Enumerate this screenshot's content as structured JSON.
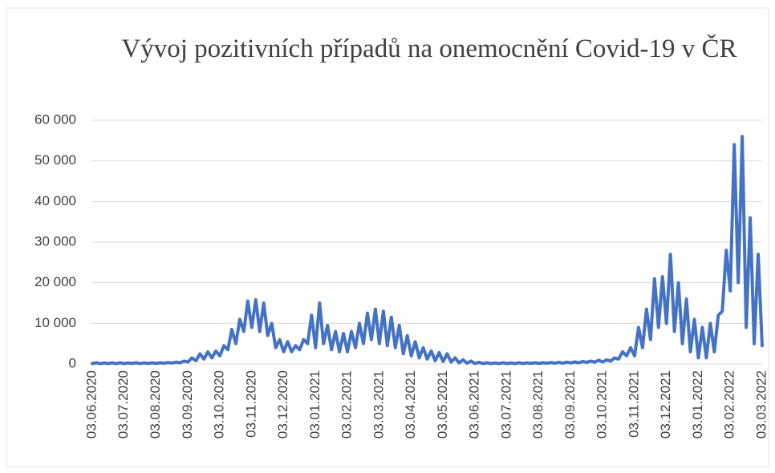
{
  "chart_data": {
    "type": "line",
    "title": "Vývoj pozitivních případů na onemocnění Covid-19 v ČR",
    "categories": [
      "03.06.2020",
      null,
      null,
      null,
      null,
      null,
      null,
      null,
      "03.07.2020",
      null,
      null,
      null,
      null,
      null,
      null,
      null,
      "03.08.2020",
      null,
      null,
      null,
      null,
      null,
      null,
      null,
      "03.09.2020",
      null,
      null,
      null,
      null,
      null,
      null,
      null,
      "03.10.2020",
      null,
      null,
      null,
      null,
      null,
      null,
      null,
      "03.11.2020",
      null,
      null,
      null,
      null,
      null,
      null,
      null,
      "03.12.2020",
      null,
      null,
      null,
      null,
      null,
      null,
      null,
      "03.01.2021",
      null,
      null,
      null,
      null,
      null,
      null,
      null,
      "03.02.2021",
      null,
      null,
      null,
      null,
      null,
      null,
      null,
      "03.03.2021",
      null,
      null,
      null,
      null,
      null,
      null,
      null,
      "03.04.2021",
      null,
      null,
      null,
      null,
      null,
      null,
      null,
      "03.05.2021",
      null,
      null,
      null,
      null,
      null,
      null,
      null,
      "03.06.2021",
      null,
      null,
      null,
      null,
      null,
      null,
      null,
      "03.07.2021",
      null,
      null,
      null,
      null,
      null,
      null,
      null,
      "03.08.2021",
      null,
      null,
      null,
      null,
      null,
      null,
      null,
      "03.09.2021",
      null,
      null,
      null,
      null,
      null,
      null,
      null,
      "03.10.2021",
      null,
      null,
      null,
      null,
      null,
      null,
      null,
      "03.11.2021",
      null,
      null,
      null,
      null,
      null,
      null,
      null,
      "03.12.2021",
      null,
      null,
      null,
      null,
      null,
      null,
      null,
      "03.01.2022",
      null,
      null,
      null,
      null,
      null,
      null,
      null,
      "03.02.2022",
      null,
      null,
      null,
      null,
      null,
      null,
      null,
      "03.03.2022"
    ],
    "values": [
      100,
      300,
      80,
      250,
      100,
      280,
      90,
      300,
      100,
      250,
      120,
      300,
      110,
      260,
      130,
      280,
      150,
      300,
      200,
      350,
      250,
      450,
      300,
      700,
      500,
      1500,
      800,
      2500,
      1200,
      3000,
      1500,
      3200,
      2000,
      4500,
      3500,
      8500,
      5000,
      11000,
      8000,
      15500,
      9000,
      15800,
      8000,
      15000,
      7000,
      10000,
      4000,
      6000,
      3000,
      5500,
      3000,
      4500,
      3500,
      6000,
      5000,
      12000,
      4000,
      15000,
      5000,
      9500,
      3500,
      8000,
      3000,
      7500,
      3000,
      8000,
      4000,
      10000,
      5000,
      12500,
      6000,
      13500,
      5000,
      13000,
      4500,
      11500,
      4000,
      9500,
      2500,
      7000,
      2000,
      5500,
      1500,
      4000,
      1200,
      3200,
      800,
      2800,
      600,
      2500,
      500,
      1500,
      300,
      1000,
      200,
      700,
      100,
      400,
      100,
      300,
      80,
      250,
      90,
      300,
      100,
      250,
      100,
      300,
      120,
      280,
      150,
      300,
      150,
      300,
      200,
      350,
      180,
      400,
      200,
      450,
      250,
      500,
      300,
      600,
      400,
      700,
      450,
      900,
      500,
      1000,
      700,
      1500,
      1200,
      3000,
      2000,
      4000,
      2000,
      9000,
      4000,
      13500,
      6000,
      21000,
      9000,
      21500,
      10000,
      27000,
      8000,
      20000,
      5000,
      16000,
      3000,
      11000,
      1500,
      9000,
      1500,
      10000,
      3000,
      12000,
      13000,
      28000,
      18000,
      54000,
      20000,
      56000,
      9000,
      36000,
      5000,
      27000,
      4500
    ],
    "color": "#4472c4",
    "ylim": [
      0,
      60000
    ],
    "yticks": [
      0,
      {
        "value": 10000,
        "label": "10 000"
      },
      {
        "value": 20000,
        "label": "20 000"
      },
      {
        "value": 30000,
        "label": "30 000"
      },
      {
        "value": 40000,
        "label": "40 000"
      },
      {
        "value": 50000,
        "label": "50 000"
      },
      {
        "value": 60000,
        "label": "60 000"
      }
    ],
    "grid": true
  }
}
